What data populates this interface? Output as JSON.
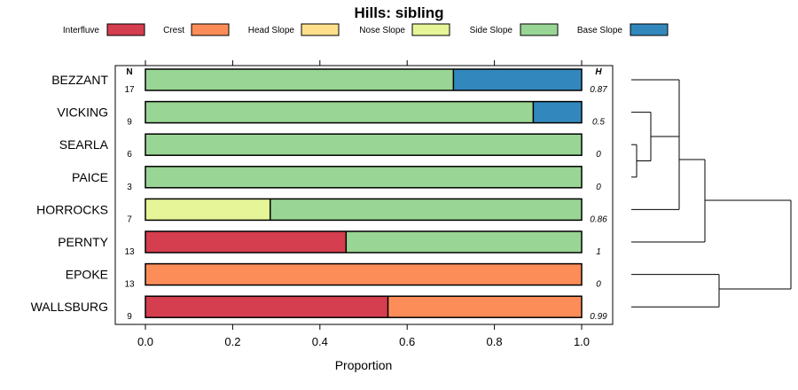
{
  "chart_data": {
    "type": "bar",
    "orientation": "horizontal",
    "stacked": true,
    "title": "Hills: sibling",
    "xlabel": "Proportion",
    "ylabel": "",
    "xlim": [
      0,
      1
    ],
    "x_ticks": [
      "0.0",
      "0.2",
      "0.4",
      "0.6",
      "0.8",
      "1.0"
    ],
    "n_header": "N",
    "h_header": "H",
    "legend": [
      {
        "label": "Interfluve",
        "color": "#d53e4f"
      },
      {
        "label": "Crest",
        "color": "#fc8d59"
      },
      {
        "label": "Head Slope",
        "color": "#fee08b"
      },
      {
        "label": "Nose Slope",
        "color": "#e6f598"
      },
      {
        "label": "Side Slope",
        "color": "#99d594"
      },
      {
        "label": "Base Slope",
        "color": "#3288bd"
      }
    ],
    "categories": [
      "BEZZANT",
      "VICKING",
      "SEARLA",
      "PAICE",
      "HORROCKS",
      "PERNTY",
      "EPOKE",
      "WALLSBURG"
    ],
    "n_values": [
      "17",
      "9",
      "6",
      "3",
      "7",
      "13",
      "13",
      "9"
    ],
    "h_values": [
      "0.87",
      "0.5",
      "0",
      "0",
      "0.86",
      "1",
      "0",
      "0.99"
    ],
    "series": [
      {
        "name": "Interfluve",
        "values": [
          0,
          0,
          0,
          0,
          0,
          0.46,
          0,
          0.556
        ]
      },
      {
        "name": "Crest",
        "values": [
          0,
          0,
          0,
          0,
          0,
          0,
          1.0,
          0.444
        ]
      },
      {
        "name": "Head Slope",
        "values": [
          0,
          0,
          0,
          0,
          0,
          0,
          0,
          0
        ]
      },
      {
        "name": "Nose Slope",
        "values": [
          0,
          0,
          0,
          0,
          0.286,
          0,
          0,
          0
        ]
      },
      {
        "name": "Side Slope",
        "values": [
          0.706,
          0.889,
          1.0,
          1.0,
          0.714,
          0.54,
          0,
          0
        ]
      },
      {
        "name": "Base Slope",
        "values": [
          0.294,
          0.111,
          0,
          0,
          0,
          0,
          0,
          0
        ]
      }
    ],
    "dendrogram": "hierarchical clustering of profiles"
  }
}
